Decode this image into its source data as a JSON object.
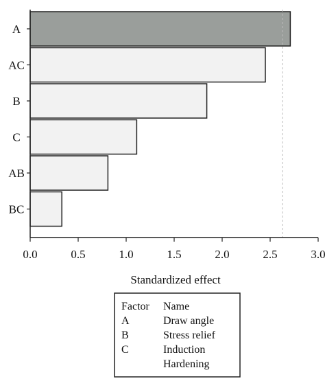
{
  "chart_data": {
    "type": "bar",
    "orientation": "horizontal",
    "categories": [
      "A",
      "AC",
      "B",
      "C",
      "AB",
      "BC"
    ],
    "values": [
      2.71,
      2.45,
      1.84,
      1.11,
      0.81,
      0.33
    ],
    "highlight": [
      true,
      false,
      false,
      false,
      false,
      false
    ],
    "reference_line": 2.63,
    "xlabel": "Standardized effect",
    "ylabel": "",
    "xlim": [
      0,
      3.0
    ],
    "xticks": [
      "0.0",
      "0.5",
      "1.0",
      "1.5",
      "2.0",
      "2.5",
      "3.0"
    ],
    "grid": false,
    "colors": {
      "highlight": "#9a9e9b",
      "normal": "#f2f2f2",
      "stroke": "#222222",
      "reference": "#bbbbbb"
    },
    "legend": {
      "header": [
        "Factor",
        "Name"
      ],
      "rows": [
        [
          "A",
          "Draw angle"
        ],
        [
          "B",
          "Stress relief"
        ],
        [
          "C",
          "Induction"
        ],
        [
          "",
          "Hardening"
        ]
      ]
    }
  }
}
